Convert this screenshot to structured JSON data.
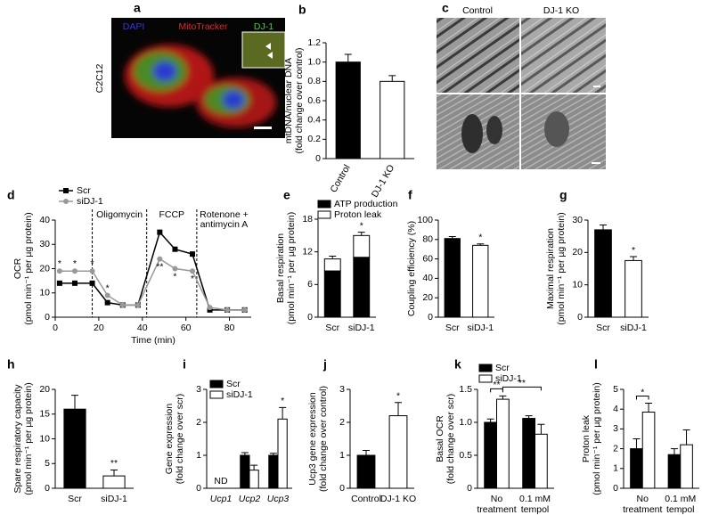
{
  "panels": {
    "a": {
      "letter": "a",
      "cell_line": "C2C12",
      "stains": [
        {
          "name": "DAPI",
          "color": "#3535e0"
        },
        {
          "name": "MitoTracker",
          "color": "#e02828"
        },
        {
          "name": "DJ-1",
          "color": "#3fcf3f"
        }
      ]
    },
    "c": {
      "letter": "c",
      "columns": [
        "Control",
        "DJ-1 KO"
      ]
    }
  },
  "chart_data": [
    {
      "type": "bar",
      "panel": "b",
      "ylabel": [
        "mtDNA/nuclear DNA",
        "(fold change over control)"
      ],
      "categories": [
        "Control",
        "DJ-1 KO"
      ],
      "rotate_labels": true,
      "values": [
        1.0,
        0.8
      ],
      "errors": [
        0.08,
        0.06
      ],
      "colors": [
        "#000000",
        "#ffffff"
      ],
      "ylim": [
        0,
        1.2
      ],
      "yticks": [
        0,
        0.2,
        0.4,
        0.6,
        0.8,
        {
          "value": 1,
          "label": "1.0"
        },
        1.2
      ]
    },
    {
      "type": "line",
      "panel": "d",
      "ylabel": [
        "OCR",
        "(pmol min⁻¹ per µg protein)"
      ],
      "xlabel": "Time (min)",
      "x": [
        2,
        9,
        17,
        24,
        31,
        38,
        48,
        55,
        63,
        71,
        79,
        87
      ],
      "series": [
        {
          "name": "Scr",
          "color": "#000000",
          "marker": "square",
          "values": [
            14,
            14,
            14,
            6,
            5,
            5,
            35,
            28,
            26,
            3,
            3,
            3
          ]
        },
        {
          "name": "siDJ-1",
          "color": "#999999",
          "marker": "circle",
          "values": [
            19,
            19,
            19,
            9,
            5,
            5,
            24,
            20,
            19,
            4,
            3,
            3
          ]
        }
      ],
      "xlim": [
        0,
        90
      ],
      "xticks": [
        0,
        20,
        40,
        60,
        80
      ],
      "ylim": [
        0,
        40
      ],
      "yticks": [
        0,
        10,
        20,
        30,
        40
      ],
      "legend": "top-left",
      "vlines": [
        {
          "x": 17,
          "label": [
            "Oligomycin"
          ]
        },
        {
          "x": 42,
          "label": [
            "FCCP"
          ]
        },
        {
          "x": 65,
          "label": [
            "Rotenone +",
            "antimycin A"
          ]
        }
      ],
      "annotations": [
        {
          "text": "*",
          "index": 0
        },
        {
          "text": "*",
          "index": 1
        },
        {
          "text": "*",
          "index": 2
        },
        {
          "text": "*",
          "index": 3
        },
        {
          "text": "**",
          "index": 6,
          "below": true
        },
        {
          "text": "*",
          "index": 7,
          "below": true
        },
        {
          "text": "*",
          "index": 8,
          "below": true
        }
      ]
    },
    {
      "type": "bar",
      "panel": "e",
      "stacked": true,
      "ylabel": [
        "Basal respiration",
        "(pmol min⁻¹ per µg protein)"
      ],
      "categories": [
        "Scr",
        "siDJ-1"
      ],
      "series": [
        {
          "name": "ATP production",
          "color": "#000000",
          "values": [
            8.5,
            11
          ],
          "errors": [
            0.4,
            0.3
          ]
        },
        {
          "name": "Proton leak",
          "color": "#ffffff",
          "values": [
            2.2,
            4
          ],
          "errors": [
            0.5,
            0.6
          ]
        }
      ],
      "ylim": [
        0,
        18
      ],
      "yticks": [
        0,
        6,
        12,
        18
      ],
      "legend": "top",
      "annotations": [
        {
          "text": "*",
          "category": 1
        }
      ]
    },
    {
      "type": "bar",
      "panel": "f",
      "ylabel": [
        "Coupling efficiency (%)"
      ],
      "categories": [
        "Scr",
        "siDJ-1"
      ],
      "values": [
        81,
        74
      ],
      "errors": [
        2,
        1.5
      ],
      "colors": [
        "#000000",
        "#ffffff"
      ],
      "ylim": [
        0,
        100
      ],
      "yticks": [
        0,
        20,
        40,
        60,
        80,
        100
      ],
      "annotations": [
        {
          "text": "*",
          "category": 1
        }
      ]
    },
    {
      "type": "bar",
      "panel": "g",
      "ylabel": [
        "Maximal respiration",
        "(pmol min⁻¹ per µg protein)"
      ],
      "categories": [
        "Scr",
        "siDJ-1"
      ],
      "values": [
        27,
        17.5
      ],
      "errors": [
        1.5,
        1.2
      ],
      "colors": [
        "#000000",
        "#ffffff"
      ],
      "ylim": [
        0,
        30
      ],
      "yticks": [
        0,
        10,
        20,
        30
      ],
      "annotations": [
        {
          "text": "*",
          "category": 1
        }
      ]
    },
    {
      "type": "bar",
      "panel": "h",
      "ylabel": [
        "Spare respiratory capacity",
        "(pmol min⁻¹ per µg protein)"
      ],
      "categories": [
        "Scr",
        "siDJ-1"
      ],
      "values": [
        16,
        2.5
      ],
      "errors": [
        2.8,
        1.2
      ],
      "colors": [
        "#000000",
        "#ffffff"
      ],
      "ylim": [
        0,
        20
      ],
      "yticks": [
        0,
        5,
        10,
        15,
        20
      ],
      "annotations": [
        {
          "text": "**",
          "category": 1
        }
      ]
    },
    {
      "type": "bar",
      "panel": "i",
      "ylabel": [
        "Gene expression",
        "(fold change over scr)"
      ],
      "categories": [
        "Ucp1",
        "Ucp2",
        "Ucp3"
      ],
      "italic_categories": true,
      "series": [
        {
          "name": "Scr",
          "color": "#000000",
          "values": [
            null,
            1.0,
            1.0
          ],
          "errors": [
            null,
            0.08,
            0.06
          ]
        },
        {
          "name": "siDJ-1",
          "color": "#ffffff",
          "values": [
            null,
            0.55,
            2.1
          ],
          "errors": [
            null,
            0.15,
            0.35
          ]
        }
      ],
      "ylim": [
        0,
        3
      ],
      "yticks": [
        0,
        1,
        2,
        3
      ],
      "legend": "top-left",
      "annotations": [
        {
          "text": "ND",
          "category": 0
        },
        {
          "text": "*",
          "category": 2,
          "series": 1
        }
      ]
    },
    {
      "type": "bar",
      "panel": "j",
      "ylabel": [
        "Ucp3 gene expression",
        "(fold change over control)"
      ],
      "categories": [
        "Control",
        "DJ-1 KO"
      ],
      "values": [
        1.0,
        2.2
      ],
      "errors": [
        0.15,
        0.4
      ],
      "colors": [
        "#000000",
        "#ffffff"
      ],
      "ylim": [
        0,
        3
      ],
      "yticks": [
        0,
        1,
        2,
        3
      ],
      "annotations": [
        {
          "text": "*",
          "category": 1
        }
      ]
    },
    {
      "type": "bar",
      "panel": "k",
      "ylabel": [
        "Basal OCR",
        "(fold change over scr)"
      ],
      "categories": [
        [
          "No",
          "treatment"
        ],
        [
          "0.1 mM",
          "tempol"
        ]
      ],
      "series": [
        {
          "name": "Scr",
          "color": "#000000",
          "values": [
            1.0,
            1.06
          ],
          "errors": [
            0.05,
            0.04
          ]
        },
        {
          "name": "siDJ-1",
          "color": "#ffffff",
          "values": [
            1.35,
            0.82
          ],
          "errors": [
            0.05,
            0.15
          ]
        }
      ],
      "ylim": [
        0,
        1.5
      ],
      "yticks": [
        0,
        0.5,
        {
          "value": 1,
          "label": "1.0"
        },
        1.5
      ],
      "legend": "top-left",
      "brackets": [
        {
          "text": "**",
          "from": [
            0,
            0
          ],
          "to": [
            0,
            1
          ]
        },
        {
          "text": "**",
          "from": [
            0,
            1
          ],
          "to": [
            1,
            1
          ]
        }
      ]
    },
    {
      "type": "bar",
      "panel": "l",
      "ylabel": [
        "Proton leak",
        "(pmol min⁻¹ per µg protein)"
      ],
      "categories": [
        [
          "No",
          "treatment"
        ],
        [
          "0.1 mM",
          "tempol"
        ]
      ],
      "series": [
        {
          "color": "#000000",
          "values": [
            2.0,
            1.7
          ],
          "errors": [
            0.5,
            0.3
          ]
        },
        {
          "color": "#ffffff",
          "values": [
            3.85,
            2.2
          ],
          "errors": [
            0.45,
            0.75
          ]
        }
      ],
      "ylim": [
        0,
        5
      ],
      "yticks": [
        0,
        1,
        2,
        3,
        4,
        5
      ],
      "brackets": [
        {
          "text": "*",
          "from": [
            0,
            0
          ],
          "to": [
            0,
            1
          ]
        }
      ]
    }
  ]
}
